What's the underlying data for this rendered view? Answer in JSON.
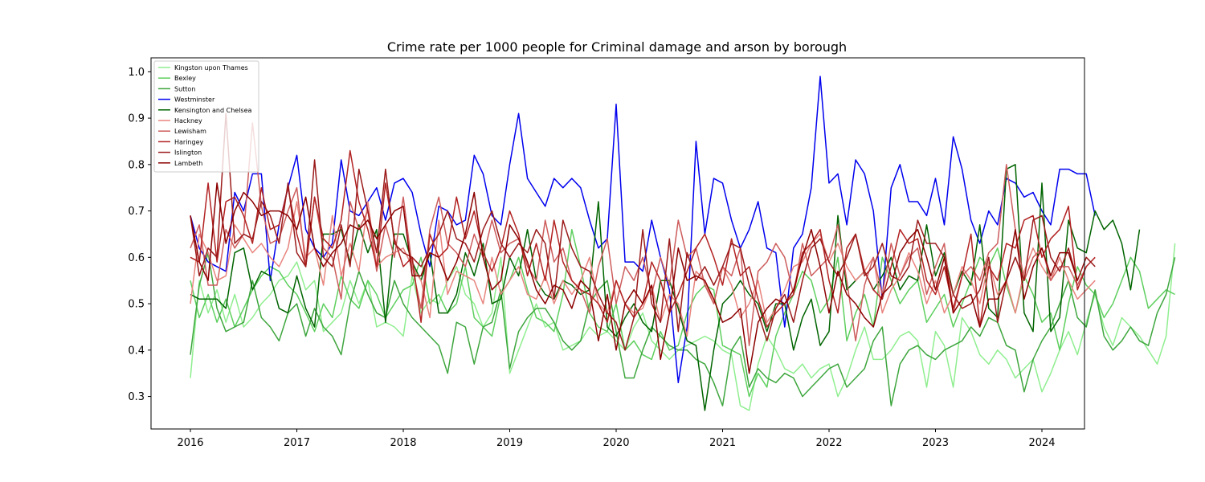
{
  "chart_data": {
    "type": "line",
    "title": "Crime rate per 1000 people for Criminal damage and arson by borough",
    "xlabel": "",
    "ylabel": "",
    "xlim": [
      2015.63,
      2024.4
    ],
    "ylim": [
      0.23,
      1.03
    ],
    "x_ticks": [
      2016,
      2017,
      2018,
      2019,
      2020,
      2021,
      2022,
      2023,
      2024
    ],
    "y_ticks": [
      0.3,
      0.4,
      0.5,
      0.6,
      0.7,
      0.8,
      0.9,
      1.0
    ],
    "grid": false,
    "legend_position": "top-left",
    "x_start": 2016,
    "x_step_months": 1,
    "series": [
      {
        "name": "Kingston upon Thames",
        "color": "#90ee90",
        "values": [
          0.34,
          0.55,
          0.48,
          0.53,
          0.46,
          0.52,
          0.45,
          0.47,
          0.5,
          0.52,
          0.55,
          0.56,
          0.59,
          0.53,
          0.55,
          0.44,
          0.46,
          0.48,
          0.55,
          0.5,
          0.55,
          0.45,
          0.46,
          0.45,
          0.43,
          0.56,
          0.48,
          0.51,
          0.5,
          0.55,
          0.58,
          0.52,
          0.5,
          0.45,
          0.48,
          0.6,
          0.35,
          0.4,
          0.45,
          0.5,
          0.45,
          0.46,
          0.4,
          0.41,
          0.42,
          0.45,
          0.43,
          0.44,
          0.42,
          0.4,
          0.45,
          0.48,
          0.42,
          0.4,
          0.38,
          0.4,
          0.41,
          0.42,
          0.43,
          0.42,
          0.4,
          0.39,
          0.28,
          0.27,
          0.37,
          0.43,
          0.4,
          0.36,
          0.35,
          0.37,
          0.34,
          0.36,
          0.37,
          0.3,
          0.34,
          0.4,
          0.45,
          0.38,
          0.38,
          0.4,
          0.43,
          0.44,
          0.42,
          0.32,
          0.44,
          0.41,
          0.32,
          0.47,
          0.44,
          0.39,
          0.37,
          0.4,
          0.38,
          0.34,
          0.36,
          0.38,
          0.31,
          0.35,
          0.4,
          0.44,
          0.39,
          0.46,
          0.52,
          0.45,
          0.41,
          0.47,
          0.45,
          0.43,
          0.4,
          0.37,
          0.43,
          0.63
        ]
      },
      {
        "name": "Bexley",
        "color": "#5ecf5e",
        "values": [
          0.55,
          0.47,
          0.52,
          0.46,
          0.51,
          0.45,
          0.49,
          0.53,
          0.56,
          0.58,
          0.57,
          0.54,
          0.52,
          0.48,
          0.44,
          0.5,
          0.47,
          0.56,
          0.51,
          0.49,
          0.55,
          0.52,
          0.47,
          0.5,
          0.53,
          0.54,
          0.6,
          0.5,
          0.52,
          0.48,
          0.5,
          0.58,
          0.47,
          0.45,
          0.43,
          0.52,
          0.55,
          0.6,
          0.53,
          0.47,
          0.46,
          0.44,
          0.52,
          0.66,
          0.58,
          0.48,
          0.45,
          0.44,
          0.5,
          0.4,
          0.42,
          0.39,
          0.38,
          0.44,
          0.4,
          0.41,
          0.48,
          0.52,
          0.54,
          0.53,
          0.41,
          0.4,
          0.39,
          0.3,
          0.35,
          0.32,
          0.43,
          0.48,
          0.52,
          0.57,
          0.55,
          0.48,
          0.51,
          0.6,
          0.42,
          0.48,
          0.52,
          0.45,
          0.6,
          0.55,
          0.5,
          0.53,
          0.55,
          0.46,
          0.49,
          0.52,
          0.45,
          0.5,
          0.55,
          0.6,
          0.58,
          0.62,
          0.54,
          0.48,
          0.56,
          0.52,
          0.46,
          0.48,
          0.4,
          0.5,
          0.58,
          0.54,
          0.52,
          0.47,
          0.5,
          0.55,
          0.6,
          0.57,
          0.49,
          0.51,
          0.53,
          0.52
        ]
      },
      {
        "name": "Sutton",
        "color": "#3ea63e",
        "values": [
          0.39,
          0.54,
          0.61,
          0.49,
          0.44,
          0.45,
          0.46,
          0.55,
          0.47,
          0.45,
          0.42,
          0.48,
          0.5,
          0.43,
          0.49,
          0.45,
          0.43,
          0.39,
          0.5,
          0.57,
          0.52,
          0.48,
          0.47,
          0.55,
          0.5,
          0.47,
          0.45,
          0.43,
          0.41,
          0.35,
          0.46,
          0.45,
          0.37,
          0.45,
          0.46,
          0.53,
          0.36,
          0.44,
          0.47,
          0.49,
          0.49,
          0.46,
          0.42,
          0.4,
          0.42,
          0.5,
          0.53,
          0.55,
          0.44,
          0.34,
          0.34,
          0.4,
          0.45,
          0.43,
          0.41,
          0.4,
          0.4,
          0.38,
          0.37,
          0.33,
          0.28,
          0.4,
          0.43,
          0.32,
          0.36,
          0.34,
          0.33,
          0.35,
          0.34,
          0.3,
          0.32,
          0.34,
          0.36,
          0.37,
          0.32,
          0.34,
          0.36,
          0.42,
          0.45,
          0.28,
          0.37,
          0.4,
          0.41,
          0.39,
          0.38,
          0.4,
          0.41,
          0.42,
          0.45,
          0.43,
          0.47,
          0.46,
          0.41,
          0.4,
          0.31,
          0.38,
          0.42,
          0.45,
          0.5,
          0.55,
          0.47,
          0.45,
          0.53,
          0.43,
          0.4,
          0.42,
          0.45,
          0.42,
          0.41,
          0.48,
          0.52,
          0.6
        ]
      },
      {
        "name": "Westminster",
        "color": "#0000ee",
        "values": [
          0.69,
          0.62,
          0.59,
          0.58,
          0.57,
          0.74,
          0.7,
          0.78,
          0.78,
          0.55,
          0.67,
          0.75,
          0.82,
          0.66,
          0.62,
          0.6,
          0.63,
          0.81,
          0.7,
          0.69,
          0.72,
          0.75,
          0.68,
          0.76,
          0.77,
          0.74,
          0.65,
          0.58,
          0.71,
          0.7,
          0.67,
          0.68,
          0.82,
          0.78,
          0.69,
          0.67,
          0.8,
          0.91,
          0.77,
          0.74,
          0.71,
          0.77,
          0.75,
          0.77,
          0.75,
          0.68,
          0.62,
          0.64,
          0.93,
          0.59,
          0.59,
          0.57,
          0.68,
          0.6,
          0.53,
          0.33,
          0.45,
          0.85,
          0.65,
          0.77,
          0.76,
          0.68,
          0.62,
          0.66,
          0.72,
          0.62,
          0.61,
          0.45,
          0.62,
          0.65,
          0.75,
          0.99,
          0.76,
          0.78,
          0.67,
          0.81,
          0.78,
          0.7,
          0.51,
          0.75,
          0.8,
          0.72,
          0.72,
          0.69,
          0.77,
          0.67,
          0.86,
          0.79,
          0.68,
          0.63,
          0.7,
          0.67,
          0.77,
          0.76,
          0.73,
          0.74,
          0.7,
          0.67,
          0.79,
          0.79,
          0.78,
          0.78,
          0.69
        ]
      },
      {
        "name": "Kensington and Chelsea",
        "color": "#006400",
        "values": [
          0.52,
          0.51,
          0.51,
          0.51,
          0.49,
          0.61,
          0.62,
          0.53,
          0.57,
          0.56,
          0.49,
          0.48,
          0.56,
          0.49,
          0.45,
          0.65,
          0.65,
          0.66,
          0.59,
          0.67,
          0.61,
          0.66,
          0.46,
          0.65,
          0.65,
          0.59,
          0.55,
          0.61,
          0.48,
          0.48,
          0.52,
          0.61,
          0.56,
          0.63,
          0.5,
          0.51,
          0.6,
          0.56,
          0.66,
          0.55,
          0.52,
          0.51,
          0.55,
          0.54,
          0.52,
          0.53,
          0.72,
          0.45,
          0.43,
          0.47,
          0.5,
          0.46,
          0.44,
          0.55,
          0.55,
          0.49,
          0.42,
          0.41,
          0.27,
          0.4,
          0.5,
          0.52,
          0.55,
          0.52,
          0.5,
          0.44,
          0.5,
          0.5,
          0.4,
          0.47,
          0.51,
          0.41,
          0.44,
          0.69,
          0.53,
          0.55,
          0.57,
          0.53,
          0.56,
          0.6,
          0.53,
          0.56,
          0.55,
          0.67,
          0.56,
          0.61,
          0.52,
          0.57,
          0.54,
          0.67,
          0.49,
          0.47,
          0.79,
          0.8,
          0.48,
          0.44,
          0.76,
          0.44,
          0.47,
          0.68,
          0.62,
          0.61,
          0.7,
          0.66,
          0.68,
          0.63,
          0.53,
          0.66
        ]
      },
      {
        "name": "Hackney",
        "color": "#e8847e",
        "values": [
          0.5,
          0.65,
          0.61,
          0.55,
          0.56,
          0.67,
          0.64,
          0.61,
          0.63,
          0.6,
          0.58,
          0.62,
          0.72,
          0.6,
          0.62,
          0.54,
          0.69,
          0.56,
          0.63,
          0.57,
          0.72,
          0.58,
          0.6,
          0.61,
          0.62,
          0.58,
          0.55,
          0.47,
          0.68,
          0.52,
          0.57,
          0.56,
          0.55,
          0.5,
          0.6,
          0.52,
          0.55,
          0.58,
          0.52,
          0.51,
          0.56,
          0.5,
          0.55,
          0.52,
          0.55,
          0.6,
          0.5,
          0.48,
          0.55,
          0.5,
          0.48,
          0.49,
          0.54,
          0.46,
          0.52,
          0.5,
          0.43,
          0.57,
          0.55,
          0.5,
          0.58,
          0.54,
          0.47,
          0.5,
          0.55,
          0.46,
          0.49,
          0.53,
          0.58,
          0.59,
          0.63,
          0.65,
          0.59,
          0.63,
          0.58,
          0.55,
          0.57,
          0.6,
          0.48,
          0.53,
          0.56,
          0.61,
          0.57,
          0.5,
          0.55,
          0.48,
          0.52,
          0.58,
          0.55,
          0.5,
          0.59,
          0.52,
          0.55,
          0.48,
          0.57,
          0.62,
          0.58,
          0.55,
          0.6,
          0.55,
          0.51,
          0.53,
          0.55
        ]
      },
      {
        "name": "Lewisham",
        "color": "#cd5c5c",
        "values": [
          0.62,
          0.67,
          0.54,
          0.54,
          0.66,
          0.62,
          0.65,
          0.89,
          0.71,
          0.63,
          0.64,
          0.7,
          0.75,
          0.58,
          0.73,
          0.62,
          0.6,
          0.51,
          0.72,
          0.66,
          0.7,
          0.57,
          0.67,
          0.6,
          0.73,
          0.58,
          0.49,
          0.66,
          0.73,
          0.63,
          0.61,
          0.58,
          0.65,
          0.6,
          0.68,
          0.61,
          0.63,
          0.64,
          0.58,
          0.55,
          0.68,
          0.59,
          0.62,
          0.55,
          0.53,
          0.48,
          0.58,
          0.64,
          0.5,
          0.58,
          0.55,
          0.6,
          0.52,
          0.6,
          0.54,
          0.68,
          0.6,
          0.62,
          0.54,
          0.5,
          0.58,
          0.56,
          0.62,
          0.41,
          0.57,
          0.59,
          0.63,
          0.6,
          0.52,
          0.63,
          0.56,
          0.58,
          0.6,
          0.67,
          0.55,
          0.42,
          0.54,
          0.6,
          0.52,
          0.63,
          0.56,
          0.6,
          0.62,
          0.52,
          0.58,
          0.63,
          0.48,
          0.56,
          0.58,
          0.55,
          0.61,
          0.63,
          0.8,
          0.66,
          0.55,
          0.6,
          0.62,
          0.55,
          0.58,
          0.58,
          0.54,
          0.58
        ]
      },
      {
        "name": "Haringey",
        "color": "#b22222",
        "values": [
          0.6,
          0.59,
          0.76,
          0.59,
          0.72,
          0.73,
          0.69,
          0.63,
          0.75,
          0.66,
          0.67,
          0.75,
          0.65,
          0.58,
          0.73,
          0.64,
          0.62,
          0.68,
          0.83,
          0.72,
          0.66,
          0.58,
          0.76,
          0.64,
          0.58,
          0.6,
          0.46,
          0.65,
          0.6,
          0.62,
          0.73,
          0.64,
          0.7,
          0.61,
          0.57,
          0.62,
          0.7,
          0.65,
          0.56,
          0.63,
          0.55,
          0.68,
          0.59,
          0.55,
          0.53,
          0.52,
          0.5,
          0.46,
          0.55,
          0.5,
          0.47,
          0.5,
          0.59,
          0.55,
          0.48,
          0.52,
          0.57,
          0.62,
          0.65,
          0.6,
          0.54,
          0.64,
          0.56,
          0.58,
          0.51,
          0.45,
          0.48,
          0.5,
          0.52,
          0.61,
          0.63,
          0.66,
          0.55,
          0.48,
          0.62,
          0.65,
          0.57,
          0.53,
          0.51,
          0.58,
          0.66,
          0.63,
          0.64,
          0.55,
          0.52,
          0.58,
          0.49,
          0.56,
          0.65,
          0.45,
          0.58,
          0.55,
          0.63,
          0.62,
          0.68,
          0.69,
          0.6,
          0.64,
          0.66,
          0.71,
          0.53,
          0.58,
          0.6
        ]
      },
      {
        "name": "Islington",
        "color": "#9b1b1b",
        "values": [
          0.69,
          0.56,
          0.62,
          0.6,
          0.91,
          0.63,
          0.65,
          0.64,
          0.72,
          0.69,
          0.63,
          0.76,
          0.61,
          0.58,
          0.81,
          0.6,
          0.58,
          0.67,
          0.58,
          0.79,
          0.7,
          0.61,
          0.79,
          0.63,
          0.61,
          0.6,
          0.58,
          0.62,
          0.65,
          0.7,
          0.64,
          0.63,
          0.59,
          0.66,
          0.7,
          0.63,
          0.6,
          0.63,
          0.61,
          0.66,
          0.63,
          0.51,
          0.68,
          0.62,
          0.58,
          0.57,
          0.52,
          0.48,
          0.46,
          0.4,
          0.47,
          0.66,
          0.5,
          0.46,
          0.64,
          0.44,
          0.61,
          0.55,
          0.58,
          0.54,
          0.58,
          0.63,
          0.62,
          0.54,
          0.48,
          0.42,
          0.49,
          0.52,
          0.46,
          0.55,
          0.62,
          0.64,
          0.59,
          0.56,
          0.6,
          0.65,
          0.56,
          0.58,
          0.63,
          0.56,
          0.55,
          0.58,
          0.68,
          0.63,
          0.63,
          0.6,
          0.52,
          0.49,
          0.5,
          0.53,
          0.6,
          0.46,
          0.55,
          0.6,
          0.55,
          0.68,
          0.69,
          0.6,
          0.57,
          0.62,
          0.55,
          0.6,
          0.58
        ]
      },
      {
        "name": "Lambeth",
        "color": "#8b0000",
        "values": [
          0.69,
          0.59,
          0.55,
          0.76,
          0.63,
          0.7,
          0.74,
          0.72,
          0.69,
          0.7,
          0.7,
          0.69,
          0.66,
          0.73,
          0.62,
          0.58,
          0.61,
          0.63,
          0.67,
          0.66,
          0.68,
          0.64,
          0.67,
          0.7,
          0.71,
          0.56,
          0.56,
          0.61,
          0.6,
          0.55,
          0.59,
          0.65,
          0.74,
          0.6,
          0.53,
          0.55,
          0.67,
          0.64,
          0.59,
          0.53,
          0.5,
          0.54,
          0.53,
          0.49,
          0.55,
          0.53,
          0.42,
          0.52,
          0.4,
          0.5,
          0.53,
          0.5,
          0.54,
          0.38,
          0.48,
          0.62,
          0.55,
          0.56,
          0.55,
          0.51,
          0.46,
          0.47,
          0.49,
          0.35,
          0.46,
          0.49,
          0.51,
          0.5,
          0.53,
          0.6,
          0.66,
          0.58,
          0.48,
          0.57,
          0.52,
          0.5,
          0.47,
          0.45,
          0.52,
          0.54,
          0.61,
          0.64,
          0.66,
          0.6,
          0.53,
          0.6,
          0.48,
          0.51,
          0.52,
          0.45,
          0.51,
          0.51,
          0.55,
          0.66,
          0.51,
          0.58,
          0.62,
          0.56,
          0.61,
          0.61,
          0.55
        ]
      }
    ]
  }
}
